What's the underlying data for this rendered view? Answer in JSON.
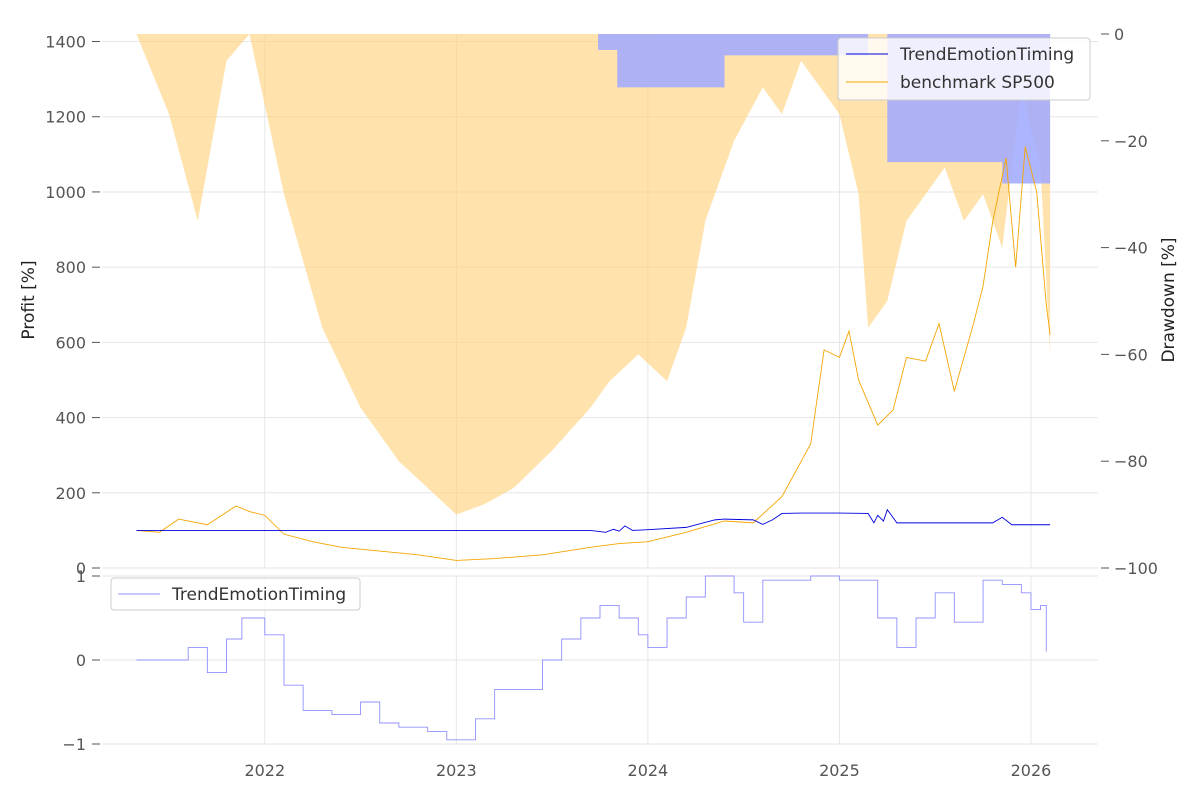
{
  "chart_data": [
    {
      "type": "line",
      "panel": "main",
      "title": "",
      "xlabel": "",
      "ylabel": "Profit [%]",
      "y2label": "Drawdown [%]",
      "x_ticks": [
        "2022",
        "2023",
        "2024",
        "2025",
        "2026"
      ],
      "y_ticks": [
        0,
        200,
        400,
        600,
        800,
        1000,
        1200,
        1400
      ],
      "y2_ticks": [
        0,
        -20,
        -40,
        -60,
        -80,
        -100
      ],
      "y_tick_labels": [
        "0",
        "200",
        "400",
        "600",
        "800",
        "1000",
        "1200",
        "1400"
      ],
      "y2_tick_labels": [
        "0",
        "−20",
        "−40",
        "−60",
        "−80",
        "−100"
      ],
      "xlim": [
        2021.15,
        2026.35
      ],
      "ylim": [
        0,
        1420
      ],
      "y2lim": [
        -100,
        0
      ],
      "legend_position": "top-right",
      "series": [
        {
          "name": "TrendEmotionTiming",
          "color": "#0000dd",
          "x": [
            2021.33,
            2023.7,
            2023.78,
            2023.82,
            2023.85,
            2023.88,
            2023.92,
            2024.0,
            2024.2,
            2024.35,
            2024.4,
            2024.55,
            2024.6,
            2024.65,
            2024.7,
            2024.8,
            2025.0,
            2025.15,
            2025.18,
            2025.2,
            2025.23,
            2025.25,
            2025.3,
            2025.5,
            2025.8,
            2025.85,
            2025.9,
            2026.0,
            2026.1
          ],
          "y": [
            100,
            100,
            95,
            103,
            98,
            112,
            100,
            102,
            108,
            128,
            130,
            128,
            116,
            128,
            145,
            146,
            146,
            145,
            120,
            140,
            125,
            155,
            120,
            120,
            120,
            135,
            115,
            115,
            115
          ]
        },
        {
          "name": "benchmark SP500",
          "color": "#f5a500",
          "x": [
            2021.33,
            2021.45,
            2021.55,
            2021.7,
            2021.85,
            2021.92,
            2022.0,
            2022.1,
            2022.25,
            2022.4,
            2022.6,
            2022.8,
            2023.0,
            2023.2,
            2023.45,
            2023.7,
            2023.85,
            2024.0,
            2024.2,
            2024.4,
            2024.55,
            2024.7,
            2024.85,
            2024.92,
            2025.0,
            2025.05,
            2025.1,
            2025.2,
            2025.28,
            2025.35,
            2025.45,
            2025.52,
            2025.6,
            2025.7,
            2025.75,
            2025.8,
            2025.87,
            2025.92,
            2025.97,
            2026.03,
            2026.08,
            2026.1
          ],
          "y": [
            100,
            95,
            130,
            115,
            165,
            150,
            140,
            90,
            70,
            55,
            45,
            35,
            20,
            25,
            35,
            55,
            65,
            70,
            95,
            125,
            120,
            190,
            330,
            580,
            560,
            630,
            500,
            380,
            420,
            560,
            550,
            650,
            470,
            650,
            750,
            920,
            1090,
            800,
            1120,
            1000,
            700,
            620
          ]
        }
      ],
      "drawdown_series": [
        {
          "name": "TrendEmotionTiming drawdown",
          "color": "#a0a8ff",
          "x": [
            2023.7,
            2023.74,
            2023.84,
            2024.3,
            2024.4,
            2025.15,
            2025.25,
            2025.35,
            2025.4,
            2025.75,
            2025.85,
            2026.05,
            2026.1
          ],
          "y": [
            0,
            -3,
            -10,
            -10,
            -4,
            0,
            -24,
            -24,
            -24,
            -24,
            -28,
            -28,
            -28
          ]
        },
        {
          "name": "benchmark SP500 drawdown",
          "color": "#ffd27f",
          "x": [
            2021.33,
            2021.5,
            2021.65,
            2021.8,
            2021.92,
            2022.1,
            2022.3,
            2022.5,
            2022.7,
            2022.85,
            2023.0,
            2023.15,
            2023.3,
            2023.5,
            2023.7,
            2023.8,
            2023.95,
            2024.1,
            2024.2,
            2024.3,
            2024.45,
            2024.6,
            2024.7,
            2024.8,
            2024.9,
            2025.0,
            2025.1,
            2025.15,
            2025.25,
            2025.35,
            2025.45,
            2025.55,
            2025.65,
            2025.75,
            2025.85,
            2025.95,
            2026.05,
            2026.1
          ],
          "y": [
            0,
            -15,
            -35,
            -5,
            0,
            -30,
            -55,
            -70,
            -80,
            -85,
            -90,
            -88,
            -85,
            -78,
            -70,
            -65,
            -60,
            -65,
            -55,
            -35,
            -20,
            -10,
            -15,
            -5,
            -10,
            -15,
            -30,
            -55,
            -50,
            -35,
            -30,
            -25,
            -35,
            -30,
            -40,
            -10,
            -25,
            -60
          ]
        }
      ]
    },
    {
      "type": "line",
      "panel": "signal",
      "title": "",
      "xlabel": "",
      "ylabel": "",
      "x_ticks": [
        "2022",
        "2023",
        "2024",
        "2025",
        "2026"
      ],
      "y_ticks": [
        -1,
        0,
        1
      ],
      "y_tick_labels": [
        "−1",
        "0",
        "1"
      ],
      "ylim": [
        -1,
        1
      ],
      "legend_position": "top-left",
      "series": [
        {
          "name": "TrendEmotionTiming",
          "color": "#9090ff",
          "x": [
            2021.33,
            2021.6,
            2021.7,
            2021.8,
            2021.88,
            2022.0,
            2022.1,
            2022.2,
            2022.35,
            2022.5,
            2022.6,
            2022.7,
            2022.85,
            2022.95,
            2023.0,
            2023.1,
            2023.2,
            2023.35,
            2023.45,
            2023.55,
            2023.65,
            2023.75,
            2023.85,
            2023.95,
            2024.0,
            2024.1,
            2024.2,
            2024.3,
            2024.45,
            2024.5,
            2024.6,
            2024.7,
            2024.85,
            2024.95,
            2025.0,
            2025.2,
            2025.3,
            2025.4,
            2025.5,
            2025.6,
            2025.75,
            2025.85,
            2025.95,
            2026.0,
            2026.05,
            2026.08
          ],
          "y": [
            0,
            0.15,
            -0.15,
            0.25,
            0.5,
            0.3,
            -0.3,
            -0.6,
            -0.65,
            -0.5,
            -0.75,
            -0.8,
            -0.85,
            -0.95,
            -0.95,
            -0.7,
            -0.35,
            -0.35,
            0.0,
            0.25,
            0.5,
            0.65,
            0.5,
            0.3,
            0.15,
            0.5,
            0.75,
            1.0,
            0.8,
            0.45,
            0.95,
            0.95,
            1.0,
            1.0,
            0.95,
            0.5,
            0.15,
            0.5,
            0.8,
            0.45,
            0.95,
            0.9,
            0.8,
            0.6,
            0.65,
            0.1
          ]
        }
      ]
    }
  ]
}
